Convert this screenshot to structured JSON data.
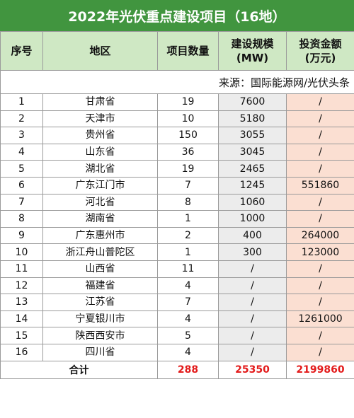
{
  "title": "2022年光伏重点建设项目（16地）",
  "headers": {
    "index": "序号",
    "region": "地区",
    "count": "项目数量",
    "capacity_line1": "建设规模",
    "capacity_line2": "(MW)",
    "investment_line1": "投资金额",
    "investment_line2": "(万元)"
  },
  "source": "来源：国际能源网/光伏头条",
  "rows": [
    {
      "index": "1",
      "region": "甘肃省",
      "count": "19",
      "capacity": "7600",
      "investment": "/"
    },
    {
      "index": "2",
      "region": "天津市",
      "count": "10",
      "capacity": "5180",
      "investment": "/"
    },
    {
      "index": "3",
      "region": "贵州省",
      "count": "150",
      "capacity": "3055",
      "investment": "/"
    },
    {
      "index": "4",
      "region": "山东省",
      "count": "36",
      "capacity": "3045",
      "investment": "/"
    },
    {
      "index": "5",
      "region": "湖北省",
      "count": "19",
      "capacity": "2465",
      "investment": "/"
    },
    {
      "index": "6",
      "region": "广东江门市",
      "count": "7",
      "capacity": "1245",
      "investment": "551860"
    },
    {
      "index": "7",
      "region": "河北省",
      "count": "8",
      "capacity": "1060",
      "investment": "/"
    },
    {
      "index": "8",
      "region": "湖南省",
      "count": "1",
      "capacity": "1000",
      "investment": "/"
    },
    {
      "index": "9",
      "region": "广东惠州市",
      "count": "2",
      "capacity": "400",
      "investment": "264000"
    },
    {
      "index": "10",
      "region": "浙江舟山普陀区",
      "count": "1",
      "capacity": "300",
      "investment": "123000"
    },
    {
      "index": "11",
      "region": "山西省",
      "count": "11",
      "capacity": "/",
      "investment": "/"
    },
    {
      "index": "12",
      "region": "福建省",
      "count": "4",
      "capacity": "/",
      "investment": "/"
    },
    {
      "index": "13",
      "region": "江苏省",
      "count": "7",
      "capacity": "/",
      "investment": "/"
    },
    {
      "index": "14",
      "region": "宁夏银川市",
      "count": "4",
      "capacity": "/",
      "investment": "1261000"
    },
    {
      "index": "15",
      "region": "陕西西安市",
      "count": "5",
      "capacity": "/",
      "investment": "/"
    },
    {
      "index": "16",
      "region": "四川省",
      "count": "4",
      "capacity": "/",
      "investment": "/"
    }
  ],
  "total": {
    "label": "合计",
    "count": "288",
    "capacity": "25350",
    "investment": "2199860"
  },
  "colors": {
    "title_bg": "#41953f",
    "header_bg": "#cfe8c4",
    "capacity_bg": "#ececec",
    "investment_bg": "#fbdfd2",
    "total_text": "#e31b1b"
  }
}
